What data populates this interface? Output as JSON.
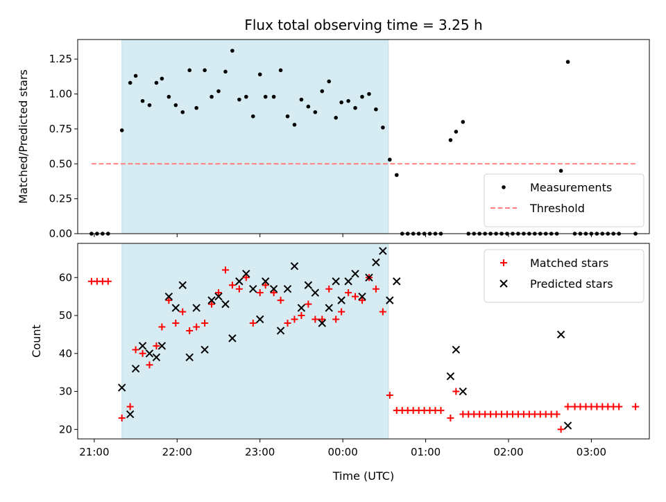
{
  "chart_data": [
    {
      "type": "scatter",
      "title": "Flux total observing time = 3.25 h",
      "xlabel": "",
      "ylabel": "Matched/Predicted stars",
      "ylim": [
        0,
        1.39
      ],
      "yticks": [
        "0.00",
        "0.25",
        "0.50",
        "0.75",
        "1.00",
        "1.25"
      ],
      "shaded_region": {
        "x_start": "21:20",
        "x_end": "00:33"
      },
      "threshold": {
        "y": 0.5,
        "x_start": "20:58",
        "x_end": "03:32",
        "name": "Threshold",
        "color": "#ff7f7f"
      },
      "legend": {
        "position": "lower-right",
        "entries": [
          "Measurements",
          "Threshold"
        ]
      },
      "series": [
        {
          "name": "Measurements",
          "color": "#000000",
          "points": [
            [
              "20:58",
              0
            ],
            [
              "21:02",
              0
            ],
            [
              "21:06",
              0
            ],
            [
              "21:10",
              0
            ],
            [
              "21:20",
              0.74
            ],
            [
              "21:26",
              1.08
            ],
            [
              "21:30",
              1.13
            ],
            [
              "21:35",
              0.95
            ],
            [
              "21:40",
              0.92
            ],
            [
              "21:45",
              1.08
            ],
            [
              "21:49",
              1.11
            ],
            [
              "21:54",
              0.98
            ],
            [
              "21:59",
              0.92
            ],
            [
              "22:04",
              0.87
            ],
            [
              "22:09",
              1.17
            ],
            [
              "22:14",
              0.9
            ],
            [
              "22:20",
              1.17
            ],
            [
              "22:25",
              0.98
            ],
            [
              "22:30",
              1.02
            ],
            [
              "22:35",
              1.16
            ],
            [
              "22:40",
              1.31
            ],
            [
              "22:45",
              0.96
            ],
            [
              "22:50",
              0.98
            ],
            [
              "22:55",
              0.84
            ],
            [
              "23:00",
              1.14
            ],
            [
              "23:04",
              0.98
            ],
            [
              "23:10",
              0.98
            ],
            [
              "23:15",
              1.17
            ],
            [
              "23:20",
              0.84
            ],
            [
              "23:25",
              0.78
            ],
            [
              "23:30",
              0.96
            ],
            [
              "23:35",
              0.91
            ],
            [
              "23:40",
              0.87
            ],
            [
              "23:45",
              1.02
            ],
            [
              "23:50",
              1.09
            ],
            [
              "23:55",
              0.83
            ],
            [
              "23:59",
              0.94
            ],
            [
              "00:04",
              0.95
            ],
            [
              "00:09",
              0.9
            ],
            [
              "00:14",
              0.98
            ],
            [
              "00:19",
              1.0
            ],
            [
              "00:24",
              0.89
            ],
            [
              "00:29",
              0.76
            ],
            [
              "00:34",
              0.53
            ],
            [
              "00:39",
              0.42
            ],
            [
              "00:43",
              0
            ],
            [
              "00:47",
              0
            ],
            [
              "00:51",
              0
            ],
            [
              "00:55",
              0
            ],
            [
              "00:59",
              0
            ],
            [
              "01:03",
              0
            ],
            [
              "01:07",
              0
            ],
            [
              "01:11",
              0
            ],
            [
              "01:18",
              0.67
            ],
            [
              "01:22",
              0.73
            ],
            [
              "01:27",
              0.8
            ],
            [
              "01:31",
              0
            ],
            [
              "01:35",
              0
            ],
            [
              "01:39",
              0
            ],
            [
              "01:43",
              0
            ],
            [
              "01:47",
              0
            ],
            [
              "01:51",
              0
            ],
            [
              "01:55",
              0
            ],
            [
              "01:59",
              0
            ],
            [
              "02:03",
              0
            ],
            [
              "02:07",
              0
            ],
            [
              "02:11",
              0
            ],
            [
              "02:15",
              0
            ],
            [
              "02:19",
              0
            ],
            [
              "02:23",
              0
            ],
            [
              "02:27",
              0
            ],
            [
              "02:31",
              0
            ],
            [
              "02:35",
              0
            ],
            [
              "02:38",
              0.45
            ],
            [
              "02:43",
              1.23
            ],
            [
              "02:48",
              0
            ],
            [
              "02:52",
              0
            ],
            [
              "02:56",
              0
            ],
            [
              "03:00",
              0
            ],
            [
              "03:04",
              0
            ],
            [
              "03:08",
              0
            ],
            [
              "03:12",
              0
            ],
            [
              "03:16",
              0
            ],
            [
              "03:20",
              0
            ],
            [
              "03:32",
              0
            ]
          ]
        }
      ]
    },
    {
      "type": "scatter",
      "title": "",
      "xlabel": "Time (UTC)",
      "ylabel": "Count",
      "ylim": [
        17.5,
        69
      ],
      "yticks": [
        "20",
        "30",
        "40",
        "50",
        "60"
      ],
      "xticks": [
        "21:00",
        "22:00",
        "23:00",
        "00:00",
        "01:00",
        "02:00",
        "03:00"
      ],
      "shaded_region": {
        "x_start": "21:20",
        "x_end": "00:33"
      },
      "legend": {
        "position": "top-right",
        "entries": [
          "Matched stars",
          "Predicted stars"
        ]
      },
      "series": [
        {
          "name": "Matched stars",
          "marker": "plus",
          "color": "#ff0000",
          "points": [
            [
              "20:58",
              59
            ],
            [
              "21:02",
              59
            ],
            [
              "21:06",
              59
            ],
            [
              "21:10",
              59
            ],
            [
              "21:20",
              23
            ],
            [
              "21:26",
              26
            ],
            [
              "21:30",
              41
            ],
            [
              "21:35",
              40
            ],
            [
              "21:40",
              37
            ],
            [
              "21:45",
              42
            ],
            [
              "21:49",
              47
            ],
            [
              "21:54",
              54
            ],
            [
              "21:59",
              48
            ],
            [
              "22:04",
              51
            ],
            [
              "22:09",
              46
            ],
            [
              "22:14",
              47
            ],
            [
              "22:20",
              48
            ],
            [
              "22:25",
              53
            ],
            [
              "22:30",
              56
            ],
            [
              "22:35",
              62
            ],
            [
              "22:40",
              58
            ],
            [
              "22:45",
              57
            ],
            [
              "22:50",
              60
            ],
            [
              "22:55",
              48
            ],
            [
              "23:00",
              56
            ],
            [
              "23:04",
              58
            ],
            [
              "23:10",
              56
            ],
            [
              "23:15",
              54
            ],
            [
              "23:20",
              48
            ],
            [
              "23:25",
              49
            ],
            [
              "23:30",
              50
            ],
            [
              "23:35",
              53
            ],
            [
              "23:40",
              49
            ],
            [
              "23:45",
              49
            ],
            [
              "23:50",
              57
            ],
            [
              "23:55",
              49
            ],
            [
              "23:59",
              51
            ],
            [
              "00:04",
              56
            ],
            [
              "00:09",
              55
            ],
            [
              "00:14",
              54
            ],
            [
              "00:19",
              60
            ],
            [
              "00:24",
              57
            ],
            [
              "00:29",
              51
            ],
            [
              "00:34",
              29
            ],
            [
              "00:39",
              25
            ],
            [
              "00:43",
              25
            ],
            [
              "00:47",
              25
            ],
            [
              "00:51",
              25
            ],
            [
              "00:55",
              25
            ],
            [
              "00:59",
              25
            ],
            [
              "01:03",
              25
            ],
            [
              "01:07",
              25
            ],
            [
              "01:11",
              25
            ],
            [
              "01:18",
              23
            ],
            [
              "01:22",
              30
            ],
            [
              "01:27",
              24
            ],
            [
              "01:31",
              24
            ],
            [
              "01:35",
              24
            ],
            [
              "01:39",
              24
            ],
            [
              "01:43",
              24
            ],
            [
              "01:47",
              24
            ],
            [
              "01:51",
              24
            ],
            [
              "01:55",
              24
            ],
            [
              "01:59",
              24
            ],
            [
              "02:03",
              24
            ],
            [
              "02:07",
              24
            ],
            [
              "02:11",
              24
            ],
            [
              "02:15",
              24
            ],
            [
              "02:19",
              24
            ],
            [
              "02:23",
              24
            ],
            [
              "02:27",
              24
            ],
            [
              "02:31",
              24
            ],
            [
              "02:35",
              24
            ],
            [
              "02:38",
              20
            ],
            [
              "02:43",
              26
            ],
            [
              "02:48",
              26
            ],
            [
              "02:52",
              26
            ],
            [
              "02:56",
              26
            ],
            [
              "03:00",
              26
            ],
            [
              "03:04",
              26
            ],
            [
              "03:08",
              26
            ],
            [
              "03:12",
              26
            ],
            [
              "03:16",
              26
            ],
            [
              "03:20",
              26
            ],
            [
              "03:32",
              26
            ]
          ]
        },
        {
          "name": "Predicted stars",
          "marker": "x",
          "color": "#000000",
          "points": [
            [
              "21:20",
              31
            ],
            [
              "21:26",
              24
            ],
            [
              "21:30",
              36
            ],
            [
              "21:35",
              42
            ],
            [
              "21:40",
              40
            ],
            [
              "21:45",
              39
            ],
            [
              "21:49",
              42
            ],
            [
              "21:54",
              55
            ],
            [
              "21:59",
              52
            ],
            [
              "22:04",
              58
            ],
            [
              "22:09",
              39
            ],
            [
              "22:14",
              52
            ],
            [
              "22:20",
              41
            ],
            [
              "22:25",
              54
            ],
            [
              "22:30",
              55
            ],
            [
              "22:35",
              53
            ],
            [
              "22:40",
              44
            ],
            [
              "22:45",
              59
            ],
            [
              "22:50",
              61
            ],
            [
              "22:55",
              57
            ],
            [
              "23:00",
              49
            ],
            [
              "23:04",
              59
            ],
            [
              "23:10",
              57
            ],
            [
              "23:15",
              46
            ],
            [
              "23:20",
              57
            ],
            [
              "23:25",
              63
            ],
            [
              "23:30",
              52
            ],
            [
              "23:35",
              58
            ],
            [
              "23:40",
              56
            ],
            [
              "23:45",
              48
            ],
            [
              "23:50",
              52
            ],
            [
              "23:55",
              59
            ],
            [
              "23:59",
              54
            ],
            [
              "00:04",
              59
            ],
            [
              "00:09",
              61
            ],
            [
              "00:14",
              55
            ],
            [
              "00:19",
              60
            ],
            [
              "00:24",
              64
            ],
            [
              "00:29",
              67
            ],
            [
              "00:34",
              54
            ],
            [
              "00:39",
              59
            ],
            [
              "01:18",
              34
            ],
            [
              "01:22",
              41
            ],
            [
              "01:27",
              30
            ],
            [
              "02:38",
              45
            ],
            [
              "02:43",
              21
            ]
          ]
        }
      ]
    }
  ]
}
